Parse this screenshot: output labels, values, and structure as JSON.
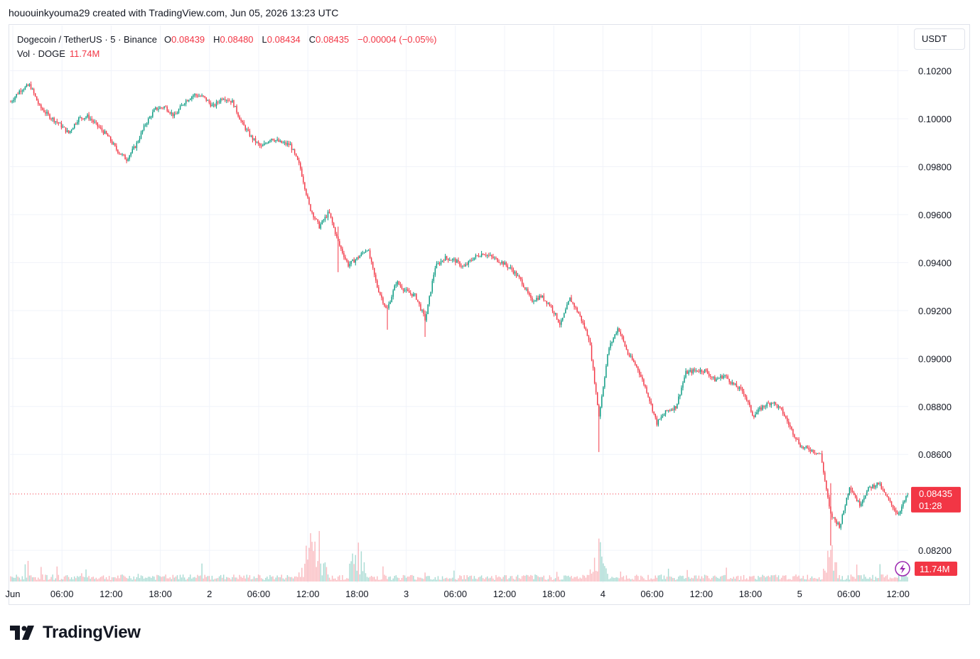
{
  "header": {
    "text": "hououinkyouma29 created with TradingView.com, Jun 05, 2026 13:23 UTC"
  },
  "legend": {
    "symbol": "Dogecoin / TetherUS · 5 · Binance",
    "open_label": "O",
    "open": "0.08439",
    "high_label": "H",
    "high": "0.08480",
    "low_label": "L",
    "low": "0.08434",
    "close_label": "C",
    "close": "0.08435",
    "change": "−0.00004 (−0.05%)",
    "vol_label": "Vol · DOGE",
    "vol_value": "11.74M"
  },
  "currency_button": "USDT",
  "colors": {
    "up": "#089981",
    "down": "#f23645",
    "grid": "#f0f3fa",
    "text": "#131722"
  },
  "last_price_tag": {
    "price": "0.08435",
    "countdown": "01:28",
    "volume": "11.74M"
  },
  "footer": {
    "brand": "TradingView",
    "logo_icon": "tradingview-logo-icon",
    "flash_icon": "lightning-icon"
  },
  "chart_data": {
    "type": "candlestick",
    "symbol": "DOGE/USDT",
    "interval": "5",
    "ylim": [
      0.0807,
      0.1024
    ],
    "y_ticks": [
      "0.10200",
      "0.10000",
      "0.09800",
      "0.09600",
      "0.09400",
      "0.09200",
      "0.09000",
      "0.08800",
      "0.08600",
      "0.08200"
    ],
    "x_ticks": [
      "Jun",
      "06:00",
      "12:00",
      "18:00",
      "2",
      "06:00",
      "12:00",
      "18:00",
      "3",
      "06:00",
      "12:00",
      "18:00",
      "4",
      "06:00",
      "12:00",
      "18:00",
      "5",
      "06:00",
      "12:00"
    ],
    "last_price": 0.08435,
    "price_path": [
      [
        0,
        0.1007
      ],
      [
        1,
        0.1012
      ],
      [
        2,
        0.1014
      ],
      [
        3,
        0.1005
      ],
      [
        4,
        0.1001
      ],
      [
        5,
        0.0998
      ],
      [
        6,
        0.0994
      ],
      [
        7,
        0.1
      ],
      [
        8,
        0.1001
      ],
      [
        9,
        0.0997
      ],
      [
        10,
        0.0993
      ],
      [
        11,
        0.0987
      ],
      [
        12,
        0.0983
      ],
      [
        13,
        0.0989
      ],
      [
        14,
        0.0998
      ],
      [
        15,
        0.1004
      ],
      [
        16,
        0.1005
      ],
      [
        17,
        0.1001
      ],
      [
        18,
        0.1007
      ],
      [
        19,
        0.101
      ],
      [
        20,
        0.1009
      ],
      [
        21,
        0.1005
      ],
      [
        22,
        0.1009
      ],
      [
        23,
        0.1007
      ],
      [
        24,
        0.0998
      ],
      [
        25,
        0.0992
      ],
      [
        26,
        0.0988
      ],
      [
        27,
        0.0992
      ],
      [
        28,
        0.099
      ],
      [
        29,
        0.0989
      ],
      [
        30,
        0.098
      ],
      [
        31,
        0.0963
      ],
      [
        32,
        0.0955
      ],
      [
        33,
        0.0961
      ],
      [
        34,
        0.0948
      ],
      [
        35,
        0.0939
      ],
      [
        36,
        0.0942
      ],
      [
        37,
        0.0946
      ],
      [
        38,
        0.093
      ],
      [
        39,
        0.092
      ],
      [
        40,
        0.0932
      ],
      [
        41,
        0.0928
      ],
      [
        42,
        0.0926
      ],
      [
        43,
        0.0916
      ],
      [
        44,
        0.0938
      ],
      [
        45,
        0.0942
      ],
      [
        46,
        0.0941
      ],
      [
        47,
        0.0938
      ],
      [
        48,
        0.0942
      ],
      [
        49,
        0.0944
      ],
      [
        50,
        0.0942
      ],
      [
        51,
        0.094
      ],
      [
        52,
        0.0937
      ],
      [
        53,
        0.0932
      ],
      [
        54,
        0.0924
      ],
      [
        55,
        0.0926
      ],
      [
        56,
        0.0922
      ],
      [
        57,
        0.0914
      ],
      [
        58,
        0.0925
      ],
      [
        59,
        0.0918
      ],
      [
        60,
        0.0908
      ],
      [
        61,
        0.0876
      ],
      [
        62,
        0.0904
      ],
      [
        63,
        0.0913
      ],
      [
        64,
        0.0902
      ],
      [
        65,
        0.0896
      ],
      [
        66,
        0.0886
      ],
      [
        67,
        0.0873
      ],
      [
        68,
        0.0878
      ],
      [
        69,
        0.088
      ],
      [
        70,
        0.0894
      ],
      [
        71,
        0.0895
      ],
      [
        72,
        0.0895
      ],
      [
        73,
        0.0891
      ],
      [
        74,
        0.0893
      ],
      [
        75,
        0.0889
      ],
      [
        76,
        0.0886
      ],
      [
        77,
        0.0876
      ],
      [
        78,
        0.088
      ],
      [
        79,
        0.0882
      ],
      [
        80,
        0.0878
      ],
      [
        81,
        0.087
      ],
      [
        82,
        0.0863
      ],
      [
        83,
        0.0862
      ],
      [
        84,
        0.086
      ],
      [
        85,
        0.0835
      ],
      [
        86,
        0.083
      ],
      [
        87,
        0.0847
      ],
      [
        88,
        0.0839
      ],
      [
        89,
        0.0846
      ],
      [
        90,
        0.0848
      ],
      [
        91,
        0.0841
      ],
      [
        92,
        0.0835
      ],
      [
        93,
        0.0843
      ]
    ],
    "spikes": [
      {
        "t": 61,
        "low": 0.0861,
        "high": 0.088
      },
      {
        "t": 85,
        "low": 0.0822,
        "high": 0.0848
      },
      {
        "t": 34,
        "low": 0.0936,
        "high": 0.0955
      },
      {
        "t": 43,
        "low": 0.0909,
        "high": 0.092
      },
      {
        "t": 39,
        "low": 0.0912,
        "high": 0.0922
      }
    ],
    "volume_spikes": [
      31,
      32,
      36,
      61,
      85
    ]
  }
}
